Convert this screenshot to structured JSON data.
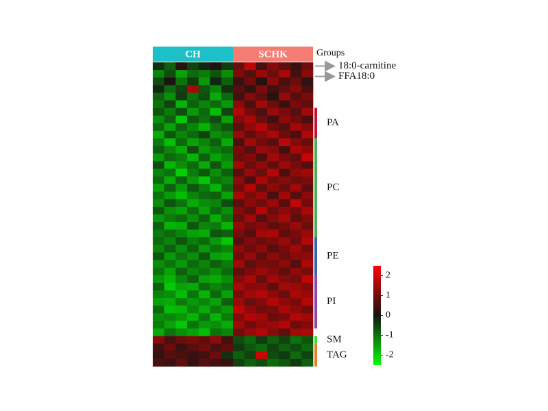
{
  "chart_data": {
    "type": "heatmap",
    "column_groups": [
      {
        "name": "CH",
        "color": "#1ec0c8",
        "count": 7
      },
      {
        "name": "SCHK",
        "color": "#f47c72",
        "count": 7
      }
    ],
    "column_groups_title": "Groups",
    "annotations": [
      {
        "text": "18:0-carnitine",
        "row": 0
      },
      {
        "text": "FFA18:0",
        "row": 1
      }
    ],
    "row_groups": [
      {
        "name": "PA",
        "color": "#c8102e",
        "rows": [
          6,
          9
        ]
      },
      {
        "name": "PC",
        "color": "#4caf50",
        "rows": [
          10,
          22
        ]
      },
      {
        "name": "PE",
        "color": "#3a5fb0",
        "rows": [
          23,
          27
        ]
      },
      {
        "name": "PI",
        "color": "#8e44ad",
        "rows": [
          28,
          34
        ]
      },
      {
        "name": "SM",
        "color": "#33dd33",
        "rows": [
          36,
          36
        ]
      },
      {
        "name": "TAG",
        "color": "#f07a2a",
        "rows": [
          37,
          39
        ]
      }
    ],
    "clim": [
      -2.5,
      2.5
    ],
    "cticks": [
      2,
      1,
      0,
      -1,
      -2
    ],
    "matrix": [
      [
        -0.3,
        -0.8,
        0.2,
        -0.5,
        -0.2,
        0.1,
        -0.4,
        0.9,
        1.8,
        0.6,
        1.2,
        0.8,
        0.4,
        1.0
      ],
      [
        -1.2,
        -0.6,
        -1.5,
        -0.9,
        -1.1,
        -0.7,
        -1.3,
        1.1,
        0.7,
        1.4,
        0.9,
        1.6,
        0.5,
        1.2
      ],
      [
        -0.6,
        0.1,
        -1.0,
        -0.4,
        -1.4,
        -0.2,
        -0.8,
        0.4,
        1.0,
        0.2,
        1.3,
        0.6,
        0.9,
        0.3
      ],
      [
        -0.2,
        -0.9,
        -0.5,
        1.6,
        -0.7,
        -1.2,
        -0.3,
        0.7,
        0.3,
        1.1,
        0.5,
        0.8,
        1.2,
        0.6
      ],
      [
        -0.8,
        -1.3,
        -0.4,
        -1.0,
        -0.6,
        -1.6,
        -0.9,
        0.5,
        1.2,
        0.8,
        0.2,
        1.4,
        0.7,
        1.1
      ],
      [
        -1.0,
        -0.5,
        -1.7,
        -0.8,
        -1.2,
        -0.9,
        -1.4,
        1.3,
        0.6,
        1.5,
        0.9,
        0.4,
        1.1,
        0.8
      ],
      [
        -0.7,
        -1.1,
        -0.6,
        -1.4,
        -0.9,
        -1.8,
        -0.5,
        1.7,
        1.0,
        0.6,
        1.4,
        1.1,
        0.7,
        1.5
      ],
      [
        -1.3,
        -0.8,
        -1.9,
        -0.7,
        -1.0,
        -0.6,
        -1.5,
        1.2,
        1.6,
        0.9,
        0.5,
        1.3,
        1.0,
        0.6
      ],
      [
        -0.9,
        -1.5,
        -0.8,
        -1.2,
        -1.7,
        -1.0,
        -0.7,
        0.8,
        1.3,
        1.7,
        1.0,
        0.7,
        1.5,
        1.2
      ],
      [
        -1.6,
        -0.7,
        -1.2,
        -0.9,
        -0.5,
        -1.3,
        -1.1,
        1.4,
        0.8,
        1.2,
        1.6,
        0.9,
        0.6,
        1.7
      ],
      [
        -1.1,
        -1.8,
        -0.9,
        -1.5,
        -1.2,
        -0.8,
        -1.6,
        0.6,
        1.5,
        1.0,
        0.7,
        1.8,
        1.2,
        0.9
      ],
      [
        -0.8,
        -1.2,
        -1.6,
        -0.6,
        -1.4,
        -1.1,
        -0.9,
        1.1,
        0.7,
        1.4,
        1.2,
        0.5,
        1.6,
        1.3
      ],
      [
        -1.4,
        -0.9,
        -1.1,
        -1.7,
        -0.8,
        -1.5,
        -1.2,
        0.9,
        1.2,
        0.6,
        1.5,
        1.1,
        0.8,
        1.9
      ],
      [
        -0.6,
        -1.7,
        -1.3,
        -0.9,
        -1.6,
        -0.7,
        -1.4,
        1.5,
        0.9,
        1.3,
        0.8,
        1.4,
        1.1,
        0.7
      ],
      [
        -1.2,
        -1.0,
        -2.0,
        -1.1,
        -0.7,
        -1.3,
        -0.8,
        0.7,
        1.4,
        0.9,
        1.7,
        0.6,
        1.3,
        1.5
      ],
      [
        -0.9,
        -1.6,
        -0.8,
        -1.4,
        -1.9,
        -1.0,
        -1.2,
        1.3,
        0.6,
        1.6,
        1.0,
        1.2,
        0.9,
        1.1
      ],
      [
        -1.5,
        -0.8,
        -1.4,
        -0.7,
        -1.1,
        -1.7,
        -0.9,
        1.0,
        1.7,
        0.8,
        1.3,
        0.9,
        1.5,
        0.8
      ],
      [
        -1.0,
        -1.4,
        -1.8,
        -1.2,
        -0.9,
        -0.8,
        -1.5,
        1.6,
        1.1,
        1.4,
        0.6,
        1.5,
        0.7,
        1.3
      ],
      [
        -1.3,
        -0.7,
        -1.0,
        -1.6,
        -1.3,
        -1.2,
        -0.6,
        0.8,
        1.3,
        1.0,
        1.4,
        0.7,
        1.8,
        1.0
      ],
      [
        -0.7,
        -1.3,
        -1.5,
        -0.9,
        -1.5,
        -0.9,
        -1.3,
        1.2,
        0.8,
        1.7,
        0.9,
        1.3,
        1.0,
        1.6
      ],
      [
        -1.4,
        -1.1,
        -0.9,
        -1.3,
        -0.8,
        -1.6,
        -1.0,
        0.9,
        1.5,
        0.7,
        1.2,
        1.6,
        0.8,
        1.2
      ],
      [
        -0.8,
        -1.7,
        -1.6,
        -0.7,
        -1.2,
        -1.1,
        -1.7,
        1.4,
        1.0,
        1.2,
        0.8,
        1.0,
        1.4,
        0.9
      ],
      [
        -1.1,
        -0.9,
        -1.2,
        -1.5,
        -1.6,
        -0.7,
        -0.8,
        1.1,
        0.7,
        1.5,
        1.6,
        0.8,
        1.1,
        1.4
      ],
      [
        -0.9,
        -1.2,
        -0.7,
        -1.1,
        -0.9,
        -1.4,
        -1.9,
        0.7,
        1.2,
        0.9,
        1.1,
        1.4,
        0.9,
        1.7
      ],
      [
        -1.2,
        -0.8,
        -1.3,
        -0.8,
        -1.4,
        -1.0,
        -1.2,
        1.3,
        0.9,
        1.3,
        0.7,
        1.1,
        1.5,
        1.0
      ],
      [
        -0.7,
        -1.4,
        -1.0,
        -1.3,
        -0.7,
        -1.5,
        -1.6,
        1.0,
        1.4,
        0.8,
        1.3,
        0.9,
        1.2,
        1.3
      ],
      [
        -1.3,
        -1.0,
        -1.4,
        -0.9,
        -1.2,
        -0.8,
        -1.1,
        1.5,
        0.8,
        1.1,
        1.0,
        1.3,
        0.7,
        1.6
      ],
      [
        -1.0,
        -1.5,
        -0.8,
        -1.2,
        -1.0,
        -1.3,
        -0.9,
        0.8,
        1.1,
        1.4,
        1.2,
        0.8,
        1.3,
        1.1
      ],
      [
        -1.4,
        -1.7,
        -1.2,
        -0.8,
        -1.5,
        -1.6,
        -1.3,
        1.2,
        1.6,
        0.9,
        1.5,
        1.2,
        1.0,
        1.8
      ],
      [
        -0.8,
        -1.9,
        -1.5,
        -1.6,
        -0.9,
        -1.2,
        -1.0,
        1.6,
        1.2,
        1.3,
        0.8,
        1.5,
        1.4,
        1.2
      ],
      [
        -1.2,
        -1.3,
        -1.8,
        -1.0,
        -1.7,
        -0.9,
        -1.5,
        1.1,
        1.5,
        1.7,
        1.3,
        0.9,
        1.6,
        1.4
      ],
      [
        -1.5,
        -1.6,
        -1.1,
        -1.4,
        -1.2,
        -1.5,
        -0.8,
        1.4,
        0.9,
        1.2,
        1.7,
        1.3,
        1.1,
        1.7
      ],
      [
        -0.9,
        -1.8,
        -1.7,
        -1.2,
        -1.6,
        -1.1,
        -1.4,
        1.8,
        1.3,
        1.0,
        1.1,
        1.6,
        1.3,
        1.0
      ],
      [
        -1.3,
        -1.2,
        -1.4,
        -1.7,
        -1.0,
        -1.7,
        -1.1,
        1.2,
        1.7,
        1.5,
        0.9,
        1.1,
        1.7,
        1.5
      ],
      [
        -1.1,
        -1.5,
        -1.9,
        -1.0,
        -1.4,
        -1.3,
        -1.6,
        1.5,
        1.0,
        1.3,
        1.4,
        1.7,
        0.9,
        1.2
      ],
      [
        -1.6,
        -1.0,
        -1.3,
        -1.5,
        -1.8,
        -1.0,
        -1.2,
        1.0,
        1.4,
        1.7,
        1.2,
        0.8,
        1.5,
        1.6
      ],
      [
        1.2,
        0.6,
        0.9,
        1.1,
        0.8,
        1.3,
        0.5,
        -0.6,
        -0.9,
        -0.4,
        -0.8,
        -0.5,
        -1.0,
        -0.7
      ],
      [
        0.5,
        0.9,
        0.4,
        0.7,
        1.0,
        0.6,
        0.8,
        -0.4,
        -0.7,
        -0.9,
        -0.5,
        -0.8,
        -0.6,
        -0.9
      ],
      [
        0.3,
        0.7,
        0.6,
        0.4,
        0.5,
        0.9,
        -0.3,
        -0.8,
        -0.5,
        1.9,
        -0.6,
        -0.4,
        -0.9,
        -0.5
      ],
      [
        0.6,
        0.4,
        0.8,
        0.3,
        0.7,
        0.5,
        0.4,
        -0.5,
        -0.8,
        -0.6,
        -0.9,
        -0.7,
        -0.4,
        -0.8
      ]
    ]
  }
}
